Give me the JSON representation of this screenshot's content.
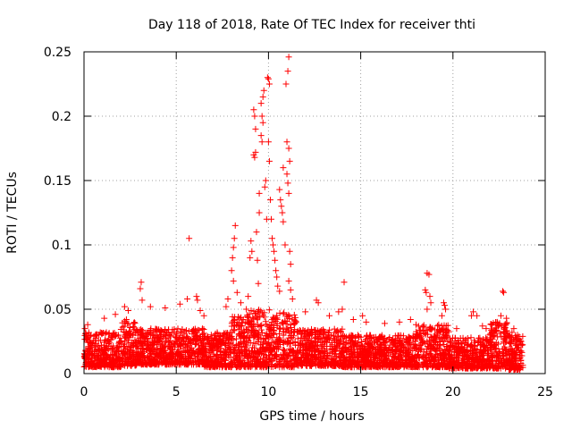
{
  "chart_data": {
    "type": "scatter",
    "title": "Day 118 of 2018, Rate Of TEC Index for receiver thti",
    "xlabel": "GPS time / hours",
    "ylabel": "ROTI / TECUs",
    "xlim": [
      0,
      25
    ],
    "ylim": [
      0,
      0.25
    ],
    "x_ticks": [
      0,
      5,
      10,
      15,
      20,
      25
    ],
    "y_ticks": [
      0,
      0.05,
      0.1,
      0.15,
      0.2,
      0.25
    ],
    "x_tick_labels": [
      "0",
      "5",
      "10",
      "15",
      "20",
      "25"
    ],
    "y_tick_labels": [
      "0",
      "0.05",
      "0.1",
      "0.15",
      "0.2",
      "0.25"
    ],
    "grid": true,
    "marker": "+",
    "marker_color": "#ff0000",
    "series": [
      {
        "name": "ROTI",
        "points": [
          [
            0.05,
            0.035
          ],
          [
            0.1,
            0.031
          ],
          [
            0.15,
            0.028
          ],
          [
            0.2,
            0.038
          ],
          [
            1.1,
            0.043
          ],
          [
            1.7,
            0.046
          ],
          [
            2.2,
            0.052
          ],
          [
            2.4,
            0.049
          ],
          [
            3.05,
            0.066
          ],
          [
            3.1,
            0.071
          ],
          [
            3.15,
            0.057
          ],
          [
            3.6,
            0.052
          ],
          [
            4.4,
            0.051
          ],
          [
            5.2,
            0.054
          ],
          [
            5.6,
            0.058
          ],
          [
            5.7,
            0.105
          ],
          [
            6.1,
            0.06
          ],
          [
            6.15,
            0.057
          ],
          [
            6.3,
            0.049
          ],
          [
            6.5,
            0.045
          ],
          [
            7.7,
            0.052
          ],
          [
            7.8,
            0.058
          ],
          [
            8.0,
            0.08
          ],
          [
            8.05,
            0.09
          ],
          [
            8.1,
            0.098
          ],
          [
            8.15,
            0.105
          ],
          [
            8.2,
            0.115
          ],
          [
            8.1,
            0.072
          ],
          [
            8.3,
            0.063
          ],
          [
            8.5,
            0.055
          ],
          [
            8.8,
            0.05
          ],
          [
            8.9,
            0.06
          ],
          [
            9.0,
            0.09
          ],
          [
            9.05,
            0.103
          ],
          [
            9.1,
            0.095
          ],
          [
            9.2,
            0.205
          ],
          [
            9.25,
            0.2
          ],
          [
            9.3,
            0.19
          ],
          [
            9.2,
            0.17
          ],
          [
            9.25,
            0.168
          ],
          [
            9.3,
            0.172
          ],
          [
            9.35,
            0.11
          ],
          [
            9.4,
            0.088
          ],
          [
            9.45,
            0.07
          ],
          [
            9.5,
            0.125
          ],
          [
            9.5,
            0.14
          ],
          [
            9.6,
            0.21
          ],
          [
            9.65,
            0.2
          ],
          [
            9.7,
            0.195
          ],
          [
            9.6,
            0.185
          ],
          [
            9.65,
            0.18
          ],
          [
            9.7,
            0.215
          ],
          [
            9.75,
            0.22
          ],
          [
            9.8,
            0.145
          ],
          [
            9.85,
            0.15
          ],
          [
            9.9,
            0.12
          ],
          [
            9.95,
            0.23
          ],
          [
            10.0,
            0.229
          ],
          [
            10.05,
            0.225
          ],
          [
            10.0,
            0.18
          ],
          [
            10.05,
            0.165
          ],
          [
            10.1,
            0.135
          ],
          [
            10.15,
            0.12
          ],
          [
            10.2,
            0.105
          ],
          [
            10.25,
            0.1
          ],
          [
            10.3,
            0.095
          ],
          [
            10.35,
            0.088
          ],
          [
            10.4,
            0.08
          ],
          [
            10.45,
            0.075
          ],
          [
            10.5,
            0.068
          ],
          [
            10.6,
            0.064
          ],
          [
            10.6,
            0.143
          ],
          [
            10.65,
            0.135
          ],
          [
            10.7,
            0.13
          ],
          [
            10.75,
            0.125
          ],
          [
            10.8,
            0.118
          ],
          [
            10.8,
            0.16
          ],
          [
            10.9,
            0.1
          ],
          [
            10.95,
            0.225
          ],
          [
            11.05,
            0.235
          ],
          [
            11.1,
            0.246
          ],
          [
            11.0,
            0.18
          ],
          [
            11.1,
            0.175
          ],
          [
            11.15,
            0.165
          ],
          [
            11.0,
            0.155
          ],
          [
            11.05,
            0.148
          ],
          [
            11.1,
            0.14
          ],
          [
            11.15,
            0.095
          ],
          [
            11.2,
            0.085
          ],
          [
            11.1,
            0.072
          ],
          [
            11.2,
            0.065
          ],
          [
            11.3,
            0.058
          ],
          [
            12.0,
            0.048
          ],
          [
            12.6,
            0.057
          ],
          [
            12.7,
            0.055
          ],
          [
            13.3,
            0.045
          ],
          [
            13.8,
            0.048
          ],
          [
            14.0,
            0.05
          ],
          [
            14.1,
            0.071
          ],
          [
            14.6,
            0.042
          ],
          [
            15.1,
            0.045
          ],
          [
            15.3,
            0.04
          ],
          [
            16.3,
            0.039
          ],
          [
            17.1,
            0.04
          ],
          [
            17.7,
            0.042
          ],
          [
            18.0,
            0.038
          ],
          [
            18.5,
            0.065
          ],
          [
            18.55,
            0.063
          ],
          [
            18.6,
            0.078
          ],
          [
            18.7,
            0.077
          ],
          [
            18.75,
            0.06
          ],
          [
            18.8,
            0.055
          ],
          [
            18.6,
            0.05
          ],
          [
            19.4,
            0.045
          ],
          [
            19.5,
            0.055
          ],
          [
            19.55,
            0.053
          ],
          [
            19.6,
            0.05
          ],
          [
            20.2,
            0.035
          ],
          [
            21.0,
            0.045
          ],
          [
            21.1,
            0.048
          ],
          [
            21.3,
            0.045
          ],
          [
            21.6,
            0.037
          ],
          [
            21.8,
            0.035
          ],
          [
            22.0,
            0.03
          ],
          [
            22.4,
            0.04
          ],
          [
            22.6,
            0.045
          ],
          [
            22.7,
            0.064
          ],
          [
            22.75,
            0.063
          ],
          [
            22.9,
            0.043
          ],
          [
            23.2,
            0.032
          ],
          [
            23.3,
            0.035
          ],
          [
            23.5,
            0.03
          ],
          [
            23.7,
            0.025
          ]
        ],
        "dense_band": [
          {
            "from": 0.0,
            "to": 2.0,
            "low": 0.005,
            "high": 0.032
          },
          {
            "from": 2.0,
            "to": 3.0,
            "low": 0.006,
            "high": 0.042
          },
          {
            "from": 3.0,
            "to": 6.5,
            "low": 0.007,
            "high": 0.035
          },
          {
            "from": 6.5,
            "to": 8.0,
            "low": 0.005,
            "high": 0.032
          },
          {
            "from": 8.0,
            "to": 8.8,
            "low": 0.005,
            "high": 0.045
          },
          {
            "from": 8.8,
            "to": 11.5,
            "low": 0.005,
            "high": 0.05
          },
          {
            "from": 11.5,
            "to": 14.0,
            "low": 0.006,
            "high": 0.035
          },
          {
            "from": 14.0,
            "to": 18.0,
            "low": 0.005,
            "high": 0.03
          },
          {
            "from": 18.0,
            "to": 19.8,
            "low": 0.005,
            "high": 0.038
          },
          {
            "from": 19.8,
            "to": 22.0,
            "low": 0.004,
            "high": 0.028
          },
          {
            "from": 22.0,
            "to": 23.0,
            "low": 0.004,
            "high": 0.04
          },
          {
            "from": 23.0,
            "to": 23.8,
            "low": 0.003,
            "high": 0.03
          }
        ]
      }
    ]
  }
}
